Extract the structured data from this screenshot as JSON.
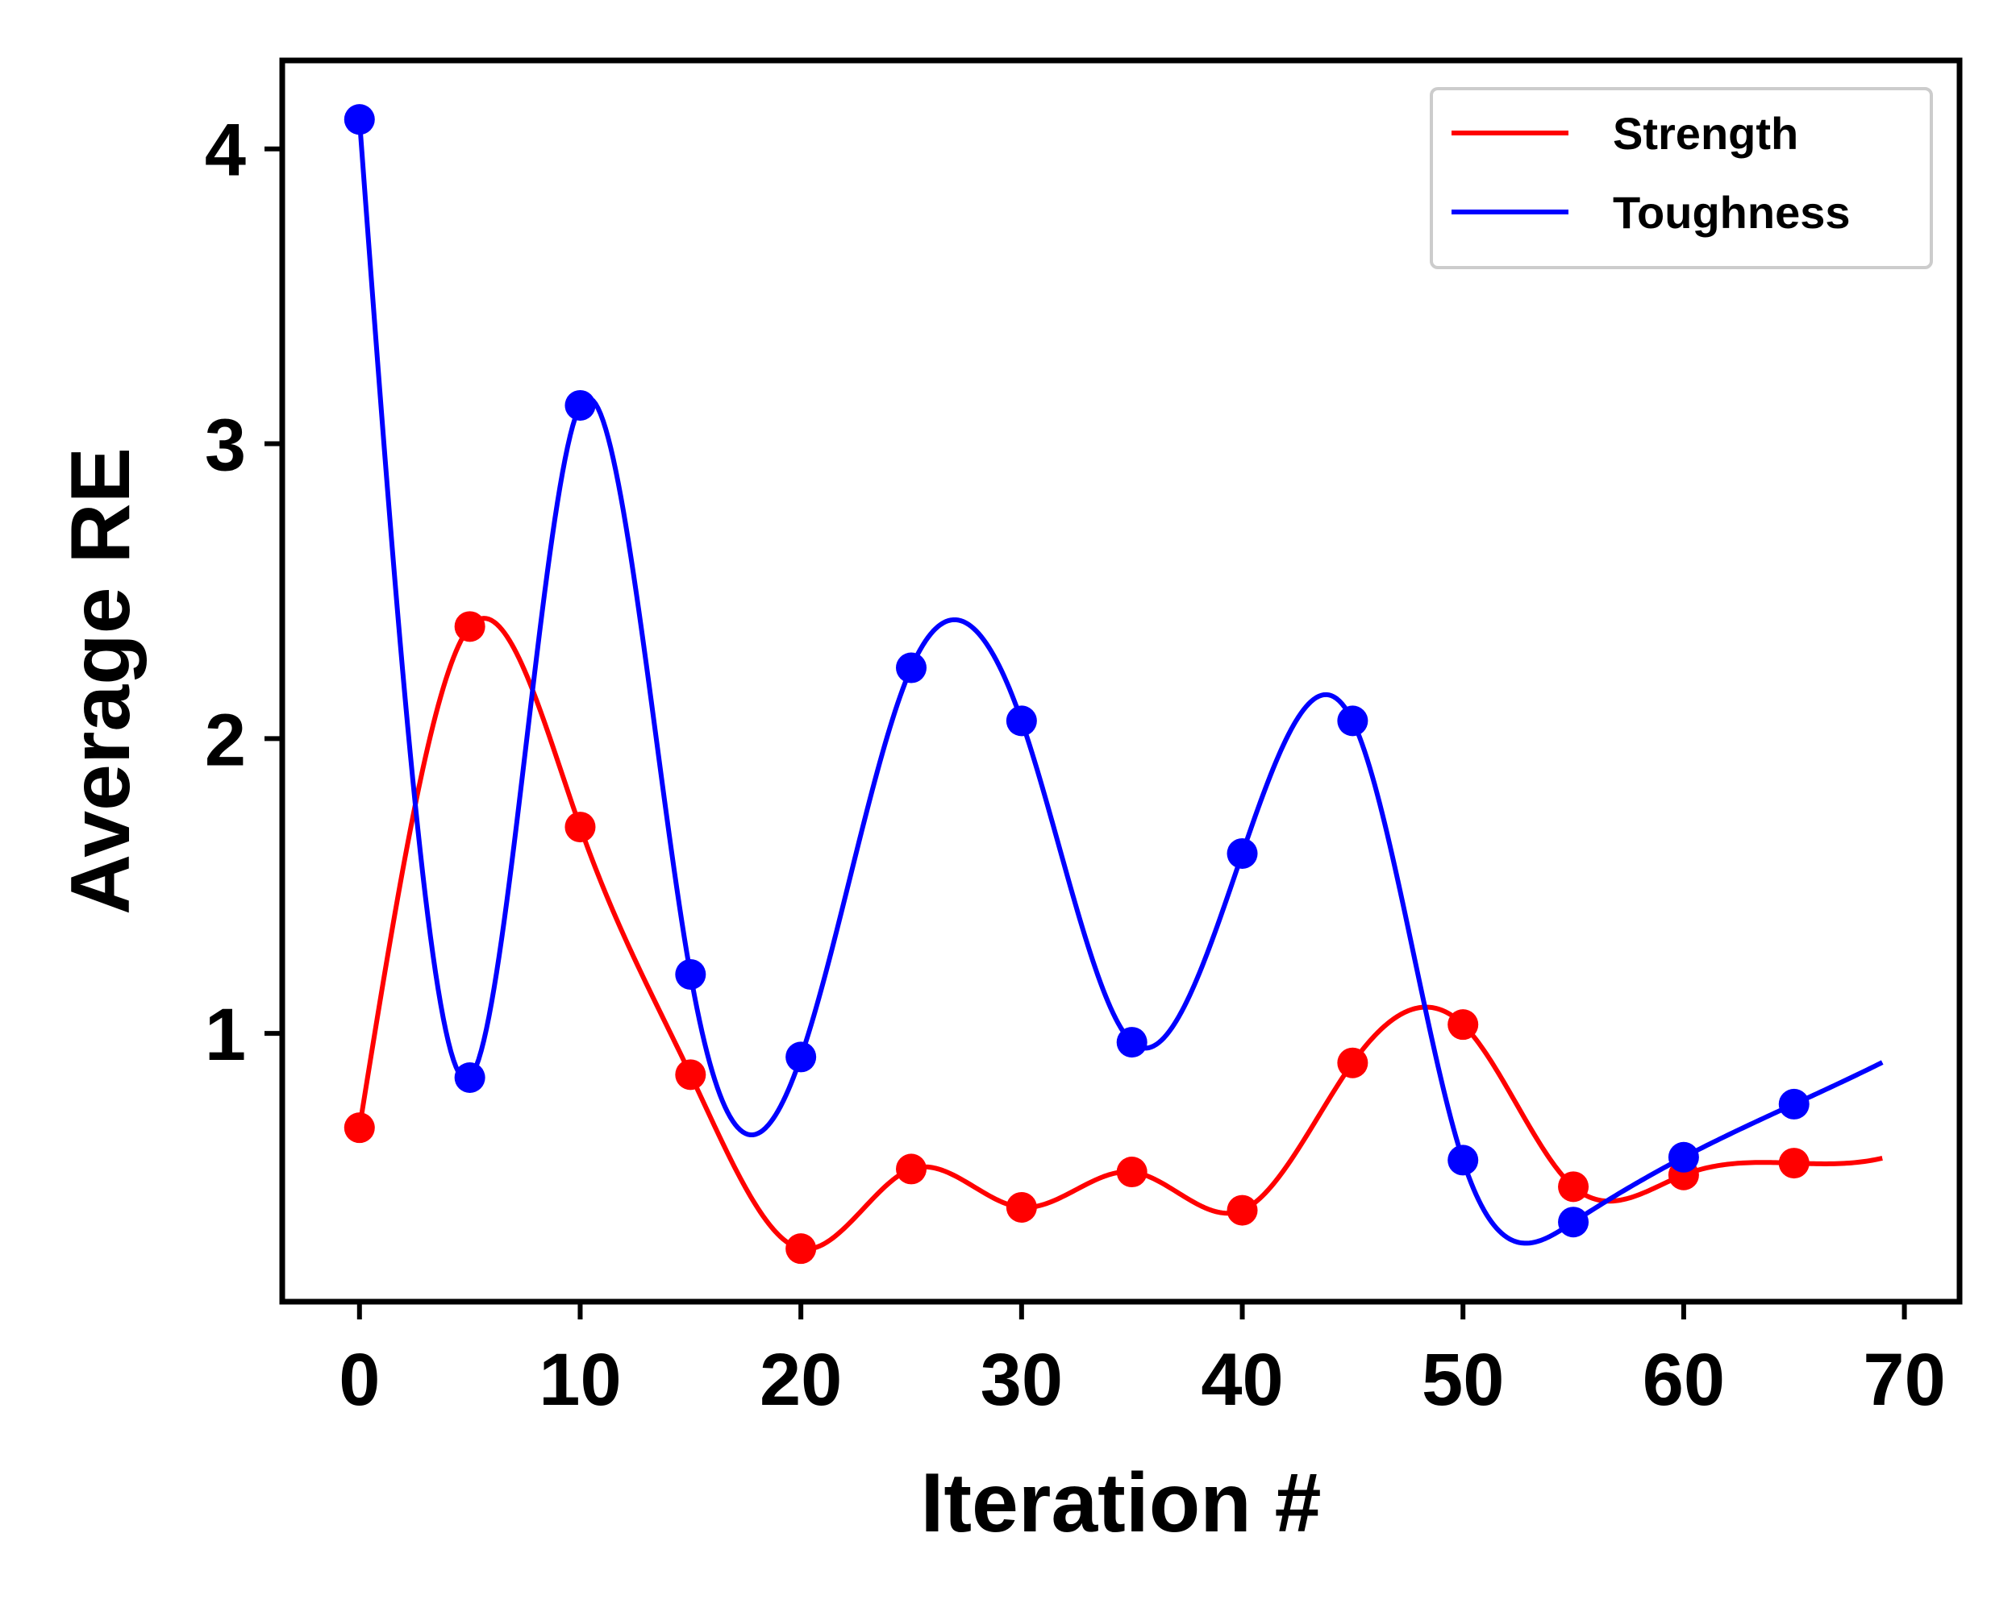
{
  "chart_data": {
    "type": "line",
    "title": "",
    "xlabel": "Iteration #",
    "ylabel": "Average RE",
    "xlim": [
      -3.5,
      72.5
    ],
    "ylim": [
      0.09,
      4.3
    ],
    "xticks": [
      0,
      10,
      20,
      30,
      40,
      50,
      60,
      70
    ],
    "yticks": [
      1,
      2,
      3,
      4
    ],
    "xtick_labels": [
      "0",
      "10",
      "20",
      "30",
      "40",
      "50",
      "60",
      "70"
    ],
    "ytick_labels": [
      "1",
      "2",
      "3",
      "4"
    ],
    "grid": false,
    "legend_position": "top-right",
    "smooth_curve_end_x": 69,
    "series": [
      {
        "name": "Strength",
        "color": "#ff0000",
        "x": [
          0,
          5,
          10,
          15,
          20,
          25,
          30,
          35,
          40,
          45,
          50,
          55,
          60,
          65
        ],
        "y": [
          0.68,
          2.38,
          1.7,
          0.86,
          0.27,
          0.54,
          0.41,
          0.53,
          0.4,
          0.9,
          1.03,
          0.48,
          0.52,
          0.56
        ]
      },
      {
        "name": "Toughness",
        "color": "#0000ff",
        "x": [
          0,
          5,
          10,
          15,
          20,
          25,
          30,
          35,
          40,
          45,
          50,
          55,
          60,
          65
        ],
        "y": [
          4.1,
          0.85,
          3.13,
          1.2,
          0.92,
          2.24,
          2.06,
          0.97,
          1.61,
          2.06,
          0.57,
          0.36,
          0.58,
          0.76
        ]
      }
    ]
  }
}
